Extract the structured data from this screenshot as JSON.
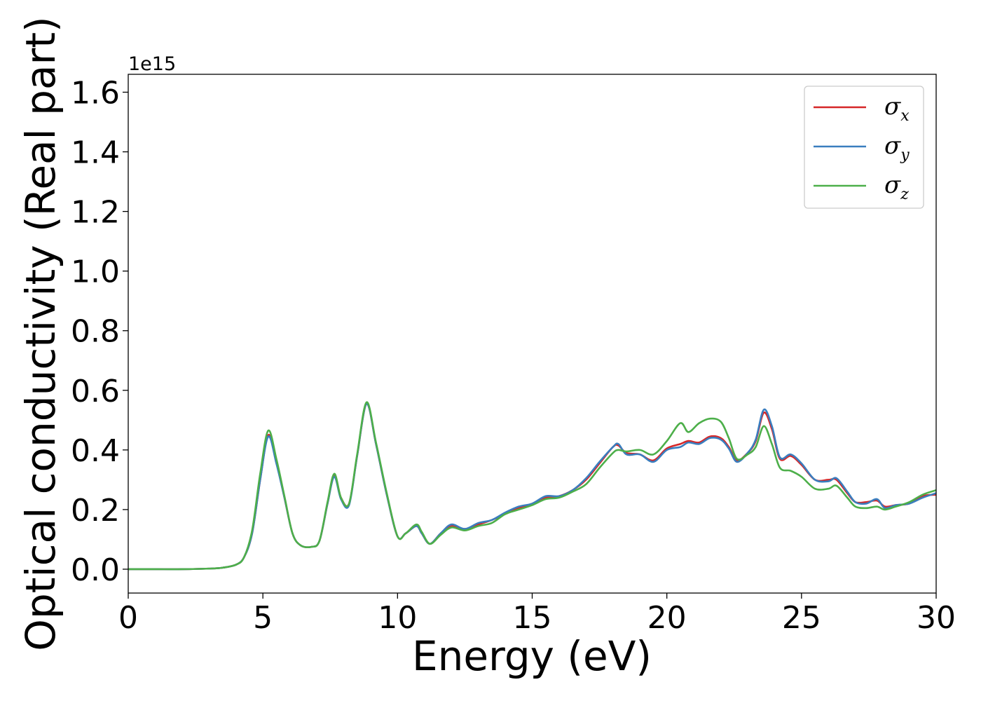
{
  "chart_data": {
    "type": "line",
    "xlabel": "Energy (eV)",
    "ylabel": "Optical conductivity (Real part)",
    "y_offset_label": "1e15",
    "xlim": [
      0,
      30
    ],
    "ylim": [
      -0.08,
      1.66
    ],
    "x_ticks": [
      0,
      5,
      10,
      15,
      20,
      25,
      30
    ],
    "x_tick_labels": [
      "0",
      "5",
      "10",
      "15",
      "20",
      "25",
      "30"
    ],
    "y_ticks": [
      0.0,
      0.2,
      0.4,
      0.6,
      0.8,
      1.0,
      1.2,
      1.4,
      1.6
    ],
    "y_tick_labels": [
      "0.0",
      "0.2",
      "0.4",
      "0.6",
      "0.8",
      "1.0",
      "1.2",
      "1.4",
      "1.6"
    ],
    "grid": false,
    "legend_position": "top-right",
    "series": [
      {
        "name": "σx",
        "base": "σ",
        "sub": "x",
        "color": "#d62728",
        "x": [
          0,
          1,
          2,
          3,
          3.5,
          4,
          4.3,
          4.6,
          4.9,
          5.2,
          5.5,
          5.8,
          6.1,
          6.4,
          6.8,
          7.1,
          7.4,
          7.65,
          7.9,
          8.2,
          8.5,
          8.85,
          9.2,
          9.6,
          10.0,
          10.3,
          10.7,
          10.9,
          11.2,
          11.6,
          12.0,
          12.5,
          13.0,
          13.5,
          14.0,
          14.5,
          15.0,
          15.5,
          16.0,
          16.5,
          17.0,
          17.5,
          18.0,
          18.2,
          18.5,
          19.0,
          19.5,
          20.0,
          20.5,
          20.8,
          21.2,
          21.6,
          22.0,
          22.3,
          22.6,
          23.0,
          23.3,
          23.6,
          23.9,
          24.2,
          24.6,
          25.0,
          25.5,
          26.0,
          26.3,
          26.7,
          27.0,
          27.4,
          27.8,
          28.1,
          28.5,
          29.0,
          29.5,
          30.0
        ],
        "y": [
          0.0,
          0.0,
          0.0,
          0.002,
          0.005,
          0.015,
          0.04,
          0.12,
          0.3,
          0.45,
          0.36,
          0.24,
          0.12,
          0.08,
          0.075,
          0.095,
          0.22,
          0.315,
          0.24,
          0.22,
          0.38,
          0.555,
          0.42,
          0.25,
          0.11,
          0.12,
          0.145,
          0.12,
          0.085,
          0.12,
          0.145,
          0.135,
          0.15,
          0.165,
          0.185,
          0.205,
          0.22,
          0.24,
          0.245,
          0.265,
          0.3,
          0.355,
          0.41,
          0.415,
          0.39,
          0.385,
          0.365,
          0.405,
          0.42,
          0.43,
          0.425,
          0.445,
          0.44,
          0.41,
          0.365,
          0.39,
          0.43,
          0.525,
          0.47,
          0.37,
          0.38,
          0.35,
          0.3,
          0.3,
          0.3,
          0.255,
          0.225,
          0.225,
          0.23,
          0.21,
          0.215,
          0.22,
          0.245,
          0.25
        ]
      },
      {
        "name": "σy",
        "base": "σ",
        "sub": "y",
        "color": "#3a7ebf",
        "x": [
          0,
          1,
          2,
          3,
          3.5,
          4,
          4.3,
          4.6,
          4.9,
          5.2,
          5.5,
          5.8,
          6.1,
          6.4,
          6.8,
          7.1,
          7.4,
          7.65,
          7.9,
          8.2,
          8.5,
          8.85,
          9.2,
          9.6,
          10.0,
          10.3,
          10.7,
          10.9,
          11.2,
          11.6,
          12.0,
          12.5,
          13.0,
          13.5,
          14.0,
          14.5,
          15.0,
          15.5,
          16.0,
          16.5,
          17.0,
          17.5,
          18.0,
          18.2,
          18.5,
          19.0,
          19.5,
          20.0,
          20.5,
          20.8,
          21.2,
          21.6,
          22.0,
          22.3,
          22.6,
          23.0,
          23.3,
          23.6,
          23.9,
          24.2,
          24.6,
          25.0,
          25.5,
          26.0,
          26.3,
          26.7,
          27.0,
          27.4,
          27.8,
          28.1,
          28.5,
          29.0,
          29.5,
          30.0
        ],
        "y": [
          0.0,
          0.0,
          0.0,
          0.002,
          0.005,
          0.015,
          0.04,
          0.12,
          0.3,
          0.445,
          0.355,
          0.24,
          0.12,
          0.08,
          0.075,
          0.095,
          0.22,
          0.31,
          0.235,
          0.215,
          0.38,
          0.555,
          0.42,
          0.25,
          0.11,
          0.12,
          0.145,
          0.12,
          0.085,
          0.12,
          0.15,
          0.135,
          0.155,
          0.165,
          0.19,
          0.21,
          0.22,
          0.245,
          0.245,
          0.265,
          0.305,
          0.36,
          0.41,
          0.42,
          0.385,
          0.385,
          0.36,
          0.4,
          0.41,
          0.425,
          0.42,
          0.44,
          0.435,
          0.405,
          0.36,
          0.39,
          0.435,
          0.535,
          0.48,
          0.375,
          0.385,
          0.355,
          0.3,
          0.295,
          0.305,
          0.26,
          0.225,
          0.22,
          0.235,
          0.205,
          0.215,
          0.22,
          0.24,
          0.255
        ]
      },
      {
        "name": "σz",
        "base": "σ",
        "sub": "z",
        "color": "#4daf4a",
        "x": [
          0,
          1,
          2,
          3,
          3.5,
          4,
          4.3,
          4.6,
          4.9,
          5.2,
          5.5,
          5.8,
          6.1,
          6.4,
          6.8,
          7.1,
          7.4,
          7.65,
          7.9,
          8.2,
          8.5,
          8.85,
          9.2,
          9.6,
          10.0,
          10.3,
          10.7,
          10.9,
          11.2,
          11.6,
          12.0,
          12.5,
          13.0,
          13.5,
          14.0,
          14.5,
          15.0,
          15.5,
          16.0,
          16.5,
          17.0,
          17.5,
          18.0,
          18.2,
          18.5,
          19.0,
          19.5,
          20.0,
          20.5,
          20.8,
          21.2,
          21.6,
          22.0,
          22.3,
          22.6,
          23.0,
          23.3,
          23.6,
          23.9,
          24.2,
          24.6,
          25.0,
          25.5,
          26.0,
          26.3,
          26.7,
          27.0,
          27.4,
          27.8,
          28.1,
          28.5,
          29.0,
          29.5,
          30.0
        ],
        "y": [
          0.0,
          0.0,
          0.0,
          0.002,
          0.005,
          0.015,
          0.04,
          0.13,
          0.32,
          0.465,
          0.37,
          0.245,
          0.12,
          0.08,
          0.075,
          0.095,
          0.225,
          0.32,
          0.24,
          0.22,
          0.385,
          0.56,
          0.425,
          0.255,
          0.11,
          0.12,
          0.15,
          0.125,
          0.085,
          0.115,
          0.14,
          0.13,
          0.145,
          0.155,
          0.185,
          0.2,
          0.215,
          0.235,
          0.24,
          0.26,
          0.285,
          0.34,
          0.39,
          0.4,
          0.395,
          0.4,
          0.385,
          0.43,
          0.49,
          0.46,
          0.49,
          0.505,
          0.495,
          0.44,
          0.37,
          0.385,
          0.41,
          0.48,
          0.42,
          0.34,
          0.33,
          0.31,
          0.27,
          0.27,
          0.28,
          0.24,
          0.21,
          0.205,
          0.21,
          0.2,
          0.21,
          0.225,
          0.25,
          0.265
        ]
      }
    ]
  }
}
